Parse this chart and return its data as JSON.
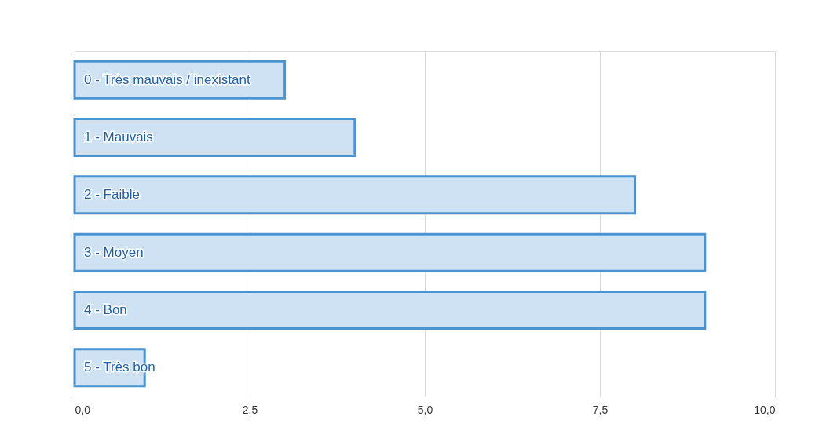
{
  "chart_data": {
    "type": "bar",
    "orientation": "horizontal",
    "categories": [
      "0 - Très mauvais / inexistant",
      "1 - Mauvais",
      "2 - Faible",
      "3 - Moyen",
      "4 - Bon",
      "5 - Très bon"
    ],
    "values": [
      3,
      4,
      8,
      9,
      9,
      1
    ],
    "color": "#cfe2f3",
    "xlim": [
      0,
      10
    ],
    "xticks": [
      {
        "value": 0,
        "label": "0,0"
      },
      {
        "value": 2.5,
        "label": "2,5"
      },
      {
        "value": 5,
        "label": "5,0"
      },
      {
        "value": 7.5,
        "label": "7,5"
      },
      {
        "value": 10,
        "label": "10,0"
      }
    ],
    "grid": "x"
  }
}
